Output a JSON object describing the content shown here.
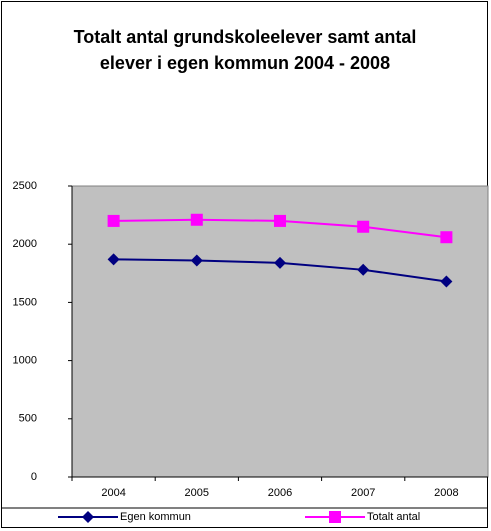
{
  "chart_data": {
    "type": "line",
    "title": "Totalt antal grundskoleelever samt antal elever i egen kommun 2004 - 2008",
    "categories": [
      "2004",
      "2005",
      "2006",
      "2007",
      "2008"
    ],
    "series": [
      {
        "name": "Egen kommun",
        "color": "#000080",
        "marker": "diamond",
        "values": [
          1870,
          1860,
          1840,
          1780,
          1680
        ]
      },
      {
        "name": "Totalt antal",
        "color": "#ff00ff",
        "marker": "square",
        "values": [
          2200,
          2210,
          2200,
          2150,
          2060
        ]
      }
    ],
    "ylim": [
      0,
      2500
    ],
    "yticks": [
      0,
      500,
      1000,
      1500,
      2000,
      2500
    ],
    "plot_background": "#c0c0c0",
    "legend": "bottom"
  }
}
